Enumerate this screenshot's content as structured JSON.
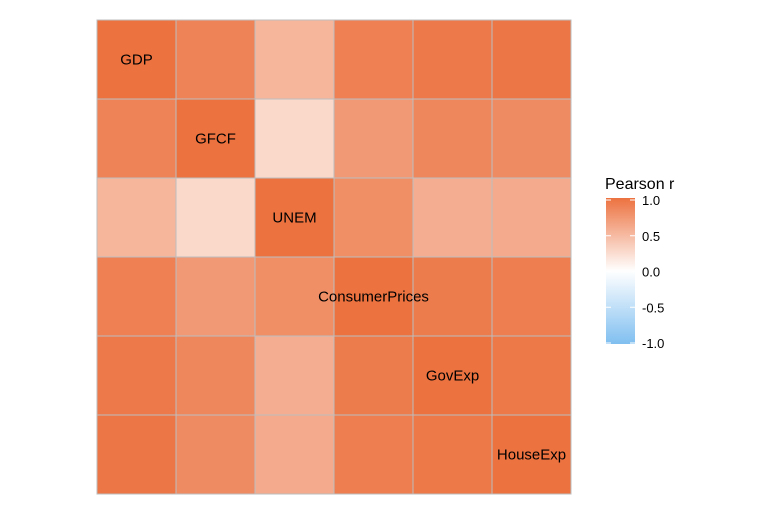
{
  "chart_data": {
    "type": "heatmap",
    "title": "",
    "variables": [
      "GDP",
      "GFCF",
      "UNEM",
      "ConsumerPrices",
      "GovExp",
      "HouseExp"
    ],
    "matrix": [
      [
        1.0,
        0.88,
        0.52,
        0.9,
        0.95,
        0.97
      ],
      [
        0.88,
        1.0,
        0.28,
        0.72,
        0.85,
        0.82
      ],
      [
        0.52,
        0.28,
        1.0,
        0.8,
        0.58,
        0.6
      ],
      [
        0.9,
        0.72,
        0.8,
        1.0,
        0.93,
        0.92
      ],
      [
        0.95,
        0.85,
        0.58,
        0.93,
        1.0,
        0.96
      ],
      [
        0.97,
        0.82,
        0.6,
        0.92,
        0.96,
        1.0
      ]
    ],
    "color_scale": {
      "low": "#80bff0",
      "mid": "#ffffff",
      "high": "#ec7240",
      "limits": [
        -1,
        1
      ]
    },
    "legend": {
      "title": "Pearson r",
      "ticks": [
        1.0,
        0.5,
        0.0,
        -0.5,
        -1.0
      ],
      "tick_labels": [
        "1.0",
        "0.5",
        "0.0",
        "-0.5",
        "-1.0"
      ],
      "placement": "right"
    },
    "diagonal_labels": true
  }
}
